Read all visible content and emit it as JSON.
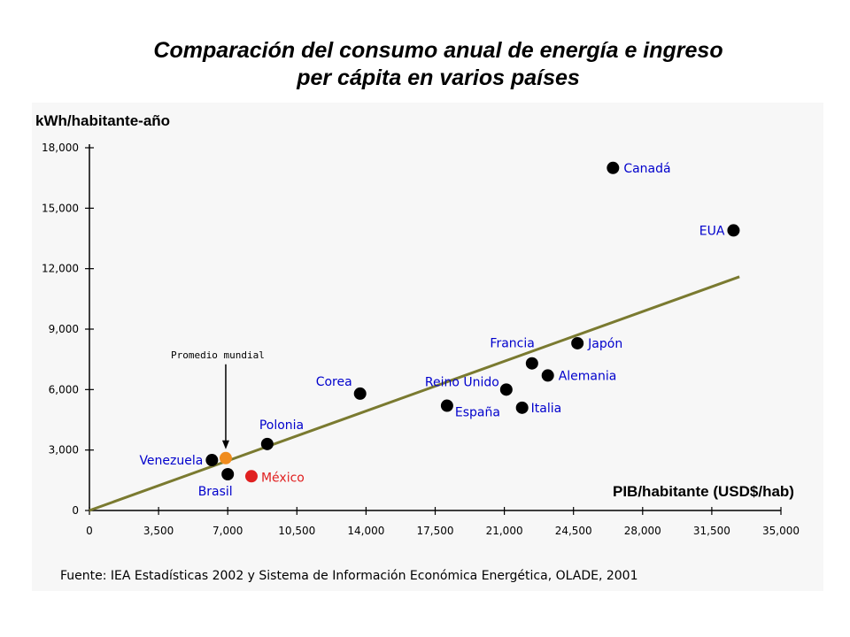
{
  "title": {
    "line1": "Comparación del consumo anual de energía e ingreso",
    "line2": "per cápita en varios países"
  },
  "colors": {
    "black_point": "#000000",
    "orange_point": "#f08c1e",
    "red_point": "#e02020",
    "label_blue": "#0000cc",
    "label_red": "#e02020",
    "trend_line": "#7a7a30",
    "panel_bg": "#f7f7f7"
  },
  "chart_data": {
    "type": "scatter",
    "title": "Comparación del consumo anual de energía e ingreso per cápita en varios países",
    "ylabel": "kWh/habitante-año",
    "xlabel": "PIB/habitante (USD$/hab)",
    "xlim": [
      0,
      35000
    ],
    "ylim": [
      0,
      18000
    ],
    "x_ticks": [
      "0",
      "3,500",
      "7,000",
      "10,500",
      "14,000",
      "17,500",
      "21,000",
      "24,500",
      "28,000",
      "31,500",
      "35,000"
    ],
    "y_ticks": [
      "0",
      "3,000",
      "6,000",
      "9,000",
      "12,000",
      "15,000",
      "18,000"
    ],
    "points": [
      {
        "name": "Canadá",
        "x": 26500,
        "y": 17000,
        "color": "black"
      },
      {
        "name": "EUA",
        "x": 32600,
        "y": 13900,
        "color": "black"
      },
      {
        "name": "Japón",
        "x": 24700,
        "y": 8300,
        "color": "black"
      },
      {
        "name": "Francia",
        "x": 22400,
        "y": 7300,
        "color": "black"
      },
      {
        "name": "Alemania",
        "x": 23200,
        "y": 6700,
        "color": "black"
      },
      {
        "name": "Reino Unido",
        "x": 21100,
        "y": 6000,
        "color": "black"
      },
      {
        "name": "Italia",
        "x": 21900,
        "y": 5100,
        "color": "black"
      },
      {
        "name": "España",
        "x": 18100,
        "y": 5200,
        "color": "black"
      },
      {
        "name": "Corea",
        "x": 13700,
        "y": 5800,
        "color": "black"
      },
      {
        "name": "Polonia",
        "x": 9000,
        "y": 3300,
        "color": "black"
      },
      {
        "name": "Venezuela",
        "x": 6200,
        "y": 2500,
        "color": "black"
      },
      {
        "name": "Brasil",
        "x": 7000,
        "y": 1800,
        "color": "black"
      },
      {
        "name": "Promedio mundial",
        "x": 6900,
        "y": 2600,
        "color": "orange"
      },
      {
        "name": "México",
        "x": 8200,
        "y": 1700,
        "color": "red"
      }
    ],
    "trendline": {
      "from": {
        "x": 0,
        "y": 0
      },
      "to": {
        "x": 32900,
        "y": 11600
      }
    },
    "annotations": [
      "Promedio mundial"
    ]
  },
  "source_note": "Fuente: IEA Estadísticas 2002 y Sistema de Información Económica Energética, OLADE, 2001"
}
